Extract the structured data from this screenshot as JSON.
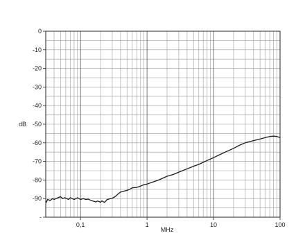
{
  "chart_data": {
    "type": "line",
    "title": "",
    "xlabel": "MHz",
    "ylabel": "dB",
    "xscale": "log",
    "xlim": [
      0.03,
      100
    ],
    "ylim": [
      -100,
      0
    ],
    "grid": true,
    "x_tick_labels": [
      {
        "value": 0.1,
        "label": "0,1"
      },
      {
        "value": 1,
        "label": "1"
      },
      {
        "value": 10,
        "label": "10"
      },
      {
        "value": 100,
        "label": "100"
      }
    ],
    "y_tick_labels": [
      {
        "value": 0,
        "label": "0"
      },
      {
        "value": -10,
        "label": "-10"
      },
      {
        "value": -20,
        "label": "-20"
      },
      {
        "value": -30,
        "label": "-30"
      },
      {
        "value": -40,
        "label": "-40"
      },
      {
        "value": -50,
        "label": "-50"
      },
      {
        "value": -60,
        "label": "-60"
      },
      {
        "value": -70,
        "label": "-70"
      },
      {
        "value": -80,
        "label": "-80"
      },
      {
        "value": -90,
        "label": "-90"
      },
      {
        "value": -100,
        "label": "-"
      }
    ],
    "series": [
      {
        "color": "#1a1a1a",
        "x": [
          0.03,
          0.032,
          0.035,
          0.038,
          0.04,
          0.043,
          0.046,
          0.05,
          0.054,
          0.058,
          0.062,
          0.066,
          0.07,
          0.075,
          0.08,
          0.085,
          0.09,
          0.1,
          0.11,
          0.12,
          0.13,
          0.14,
          0.15,
          0.16,
          0.17,
          0.18,
          0.19,
          0.2,
          0.21,
          0.22,
          0.23,
          0.25,
          0.27,
          0.3,
          0.33,
          0.36,
          0.4,
          0.45,
          0.5,
          0.55,
          0.6,
          0.7,
          0.8,
          0.9,
          1,
          1.2,
          1.5,
          2,
          2.5,
          3,
          4,
          5,
          6,
          7,
          8,
          10,
          12,
          15,
          20,
          25,
          30,
          40,
          50,
          60,
          70,
          80,
          90,
          100
        ],
        "y": [
          -92.5,
          -90.5,
          -91,
          -90,
          -90.5,
          -90,
          -89.5,
          -89,
          -90,
          -89.5,
          -90,
          -90.5,
          -89.5,
          -90,
          -90.5,
          -90,
          -89.5,
          -90.5,
          -90,
          -90.5,
          -90.3,
          -90.8,
          -91.2,
          -91.5,
          -91.8,
          -91.3,
          -91.6,
          -92,
          -91.2,
          -91.7,
          -92,
          -90.6,
          -90.2,
          -89.8,
          -89,
          -87.8,
          -86.5,
          -86,
          -85.6,
          -85,
          -84.2,
          -84,
          -83.3,
          -82.5,
          -82.2,
          -81.2,
          -80,
          -78,
          -77,
          -75.8,
          -74,
          -72.6,
          -71.6,
          -70.5,
          -69.5,
          -68,
          -66.6,
          -65,
          -63,
          -61.2,
          -60,
          -58.8,
          -58,
          -57.2,
          -56.6,
          -56.4,
          -56.6,
          -57.2
        ]
      }
    ]
  }
}
